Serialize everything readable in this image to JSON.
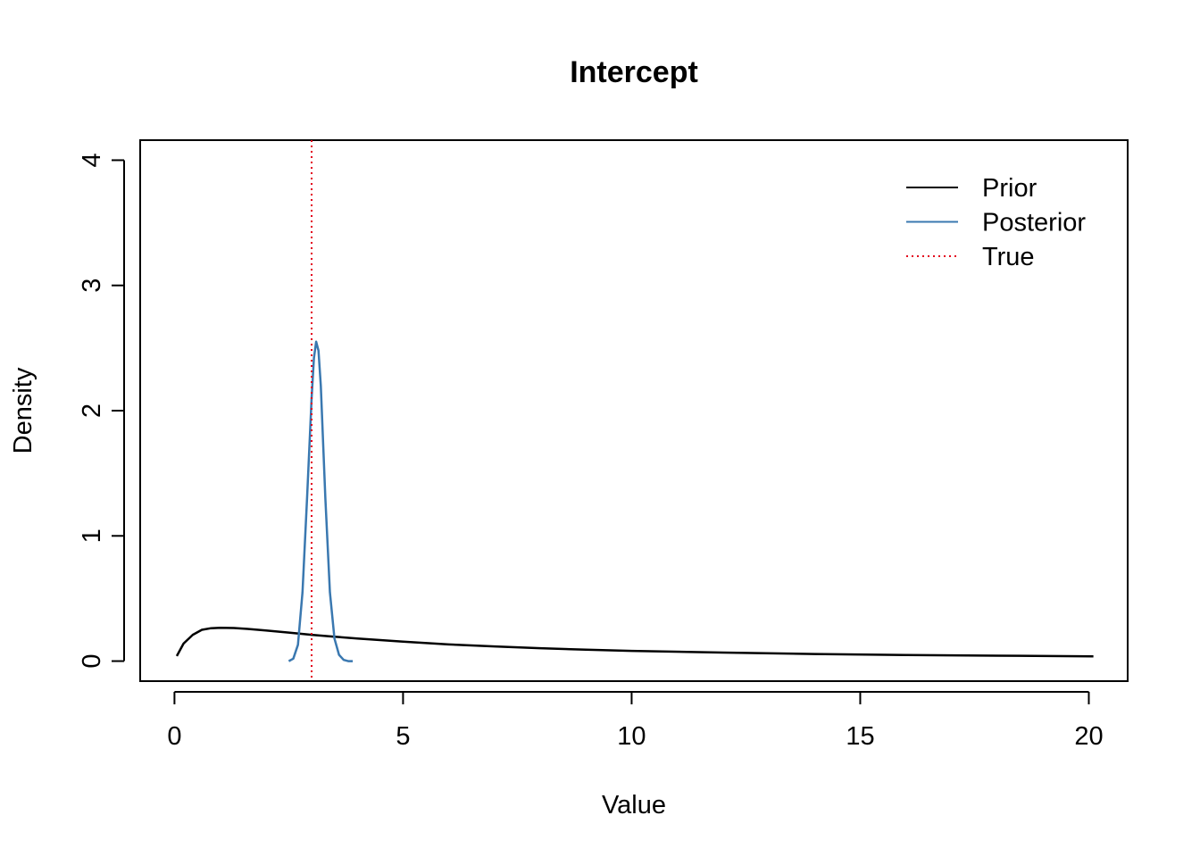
{
  "chart_data": {
    "type": "line",
    "title": "Intercept",
    "xlabel": "Value",
    "ylabel": "Density",
    "xlim": [
      -0.75,
      20.85
    ],
    "ylim": [
      -0.16,
      4.16
    ],
    "xticks": [
      0,
      5,
      10,
      15,
      20
    ],
    "yticks": [
      0,
      1,
      2,
      3,
      4
    ],
    "grid": false,
    "legend_position": "top-right",
    "series": [
      {
        "name": "Prior",
        "color": "#000000",
        "style": "solid",
        "x": [
          0.05,
          0.2,
          0.4,
          0.6,
          0.8,
          1.0,
          1.3,
          1.6,
          2.0,
          2.5,
          3.0,
          3.5,
          4.0,
          5.0,
          6.0,
          7.0,
          8.0,
          9.0,
          10.0,
          12.0,
          14.0,
          16.0,
          18.0,
          20.1
        ],
        "y": [
          0.04,
          0.14,
          0.21,
          0.25,
          0.263,
          0.266,
          0.264,
          0.257,
          0.245,
          0.228,
          0.21,
          0.195,
          0.18,
          0.155,
          0.133,
          0.117,
          0.103,
          0.091,
          0.082,
          0.068,
          0.057,
          0.049,
          0.043,
          0.038
        ]
      },
      {
        "name": "Posterior",
        "color": "#3a78b0",
        "style": "solid",
        "x": [
          2.5,
          2.6,
          2.7,
          2.8,
          2.9,
          3.0,
          3.05,
          3.1,
          3.15,
          3.2,
          3.3,
          3.4,
          3.5,
          3.6,
          3.7,
          3.8,
          3.9
        ],
        "y": [
          0.0,
          0.02,
          0.13,
          0.55,
          1.3,
          2.1,
          2.42,
          2.55,
          2.48,
          2.2,
          1.3,
          0.55,
          0.18,
          0.05,
          0.01,
          0.0,
          0.0
        ]
      },
      {
        "name": "True",
        "color": "#e3001b",
        "style": "dotted",
        "vline": 3.0
      }
    ]
  }
}
